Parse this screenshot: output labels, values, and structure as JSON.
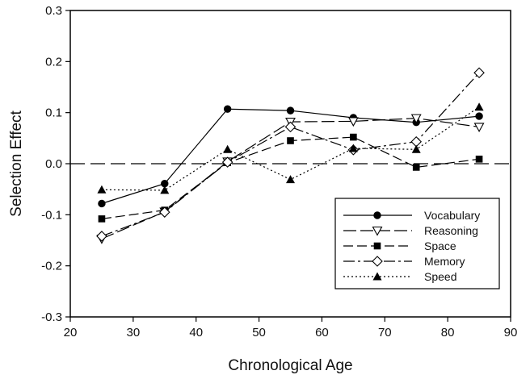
{
  "chart_data": {
    "type": "line",
    "title": "",
    "xlabel": "Chronological Age",
    "ylabel": "Selection Effect",
    "xlim": [
      20,
      90
    ],
    "ylim": [
      -0.3,
      0.3
    ],
    "x_ticks": [
      20,
      30,
      40,
      50,
      60,
      70,
      80,
      90
    ],
    "y_ticks": [
      -0.3,
      -0.2,
      -0.1,
      0.0,
      0.1,
      0.2,
      0.3
    ],
    "y_tick_labels": [
      "-0.3",
      "-0.2",
      "-0.1",
      "0.0",
      "0.1",
      "0.2",
      "0.3"
    ],
    "x_tick_labels": [
      "20",
      "30",
      "40",
      "50",
      "60",
      "70",
      "80",
      "90"
    ],
    "reference_line_y": 0.0,
    "grid": false,
    "legend_position": "lower-right",
    "x": [
      25,
      35,
      45,
      55,
      65,
      75,
      85
    ],
    "series": [
      {
        "name": "Vocabulary",
        "values": [
          -0.078,
          -0.039,
          0.107,
          0.104,
          0.09,
          0.081,
          0.093
        ],
        "marker": "filled-circle",
        "line_style": "solid"
      },
      {
        "name": "Reasoning",
        "values": [
          -0.147,
          -0.094,
          0.004,
          0.082,
          0.083,
          0.089,
          0.072
        ],
        "marker": "open-triangle-down",
        "line_style": "long-dash"
      },
      {
        "name": "Space",
        "values": [
          -0.108,
          -0.091,
          0.002,
          0.045,
          0.052,
          -0.007,
          0.009
        ],
        "marker": "filled-square",
        "line_style": "dash"
      },
      {
        "name": "Memory",
        "values": [
          -0.142,
          -0.095,
          0.003,
          0.072,
          0.027,
          0.043,
          0.178
        ],
        "marker": "open-diamond",
        "line_style": "dash-dot"
      },
      {
        "name": "Speed",
        "values": [
          -0.051,
          -0.052,
          0.028,
          -0.031,
          0.03,
          0.028,
          0.111
        ],
        "marker": "filled-triangle-up",
        "line_style": "dotted"
      }
    ]
  }
}
